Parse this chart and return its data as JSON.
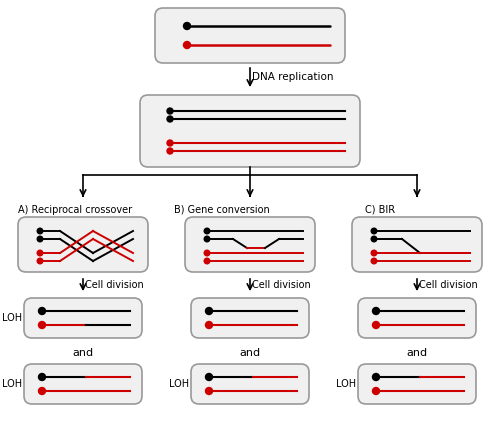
{
  "bg_color": "#ffffff",
  "line_black": "#000000",
  "line_red": "#cc0000",
  "box_edge": "#999999",
  "box_fill": "#f0f0f0",
  "text_color": "#000000",
  "arrow_color": "#000000",
  "title_A": "A) Reciprocal crossover",
  "title_B": "B) Gene conversion",
  "title_C": "C) BIR",
  "label_dna": "DNA replication",
  "label_cell": "Cell division",
  "label_loh": "LOH",
  "label_and": "and"
}
